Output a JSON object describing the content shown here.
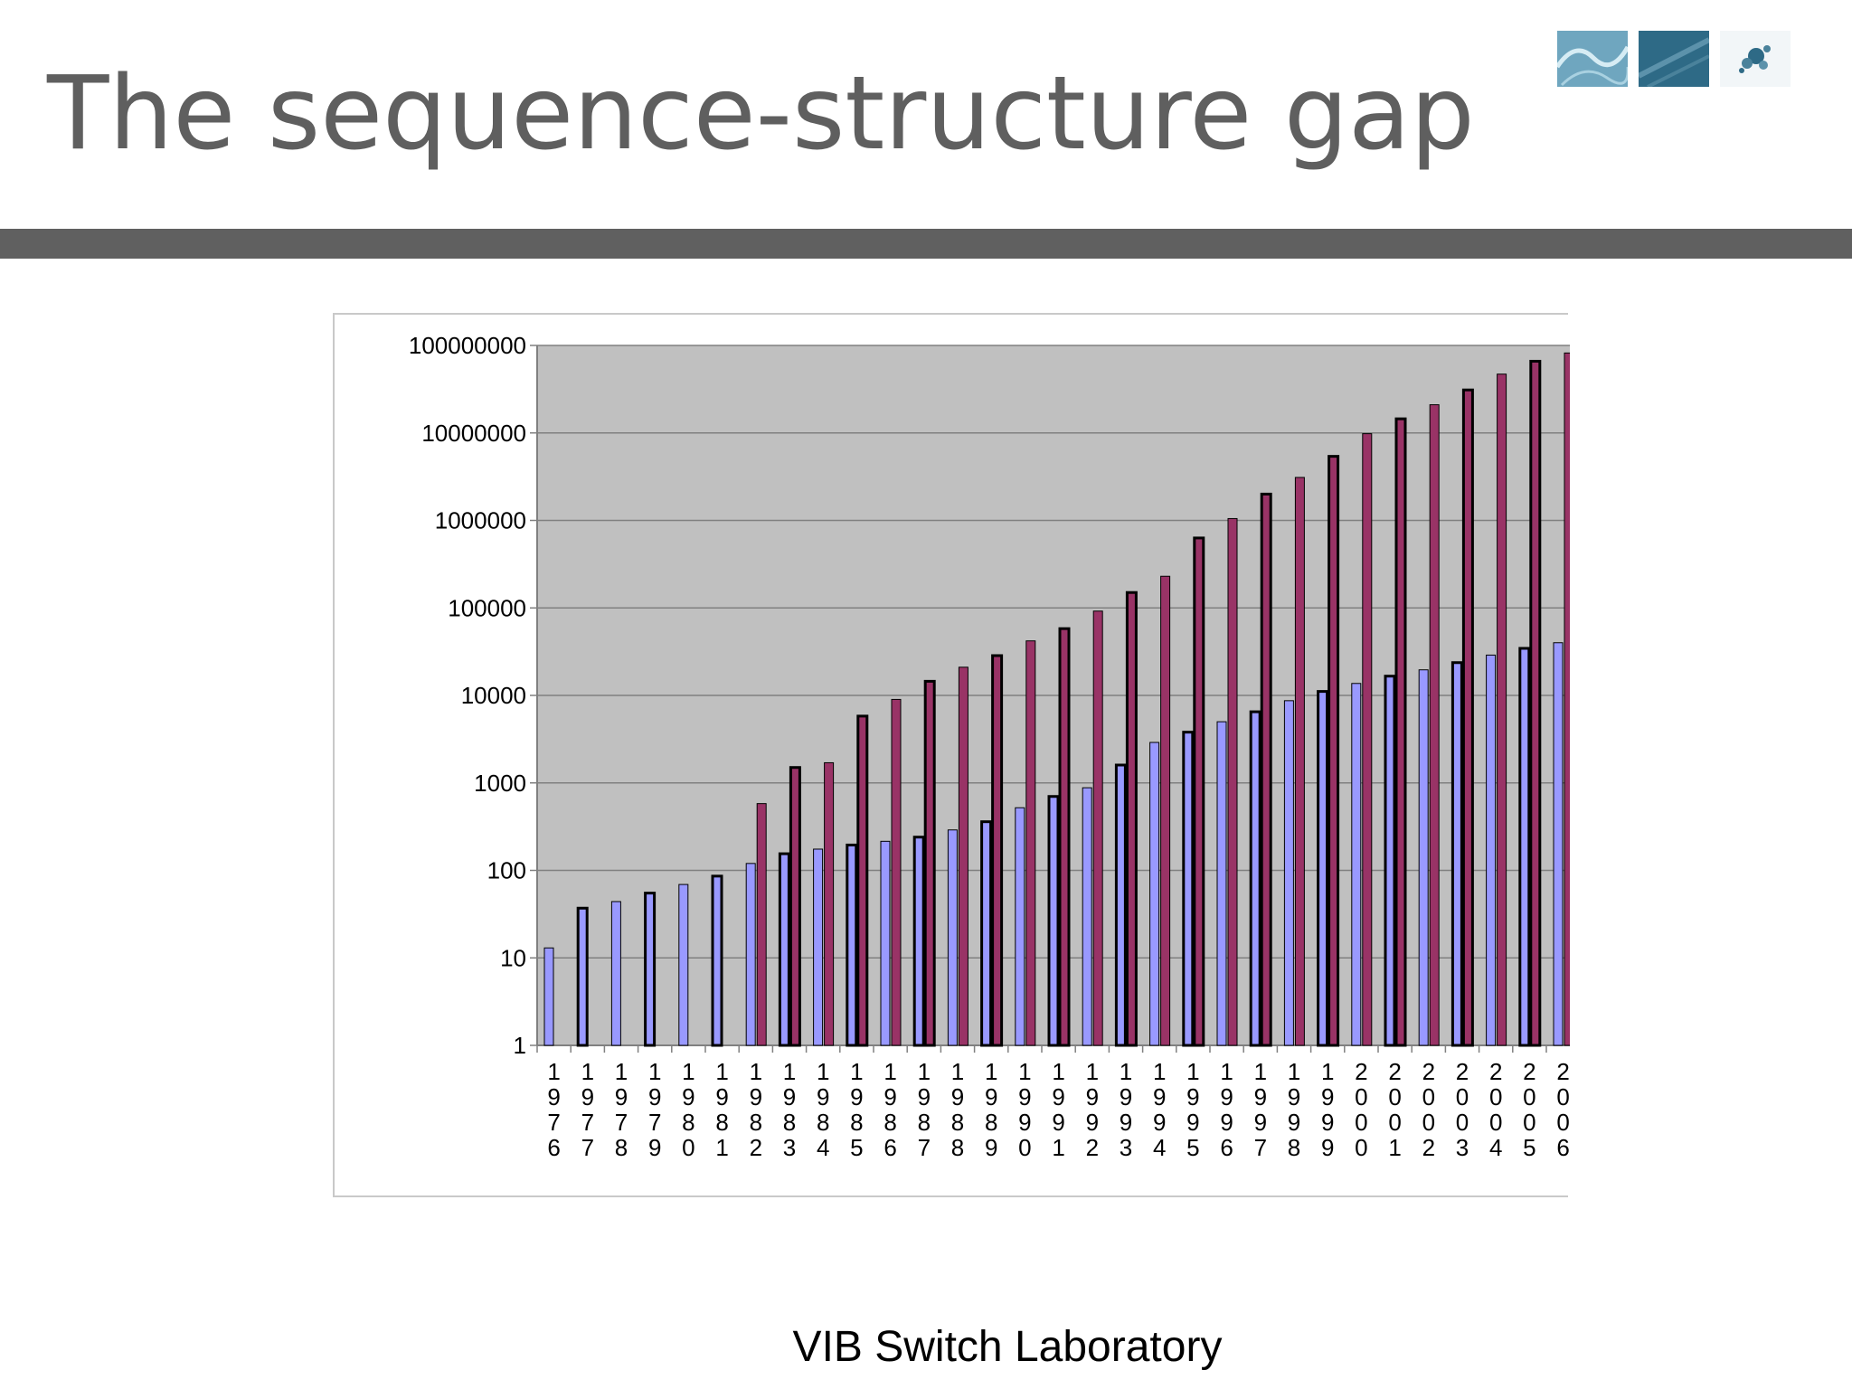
{
  "slide": {
    "title": "The sequence-structure gap",
    "footer": "VIB Switch Laboratory"
  },
  "colors": {
    "title_text": "#5f5f5f",
    "title_rule": "#606060",
    "plot_background": "#c0c0c0",
    "structures_series": "#9999ff",
    "sequences_series": "#993366"
  },
  "icons": [
    "thumbnail-image-1",
    "thumbnail-image-2",
    "thumbnail-image-3"
  ],
  "chart_data": {
    "type": "bar",
    "title": "",
    "xlabel": "",
    "ylabel": "",
    "yscale": "log",
    "ylim": [
      1,
      100000000
    ],
    "yticks": [
      1,
      10,
      100,
      1000,
      10000,
      100000,
      1000000,
      10000000,
      100000000
    ],
    "ytick_labels": [
      "1",
      "10",
      "100",
      "1000",
      "10000",
      "100000",
      "1000000",
      "10000000",
      "100000000"
    ],
    "grid": true,
    "legend": "none",
    "categories": [
      "1976",
      "1977",
      "1978",
      "1979",
      "1980",
      "1981",
      "1982",
      "1983",
      "1984",
      "1985",
      "1986",
      "1987",
      "1988",
      "1989",
      "1990",
      "1991",
      "1992",
      "1993",
      "1994",
      "1995",
      "1996",
      "1997",
      "1998",
      "1999",
      "2000",
      "2001",
      "2002",
      "2003",
      "2004",
      "2005",
      "2006"
    ],
    "series": [
      {
        "values": [
          13,
          37,
          44,
          55,
          69,
          86,
          120,
          155,
          175,
          195,
          215,
          240,
          290,
          360,
          520,
          700,
          880,
          1600,
          2900,
          3800,
          5000,
          6500,
          8700,
          11100,
          13700,
          16600,
          19600,
          23700,
          28900,
          34500,
          40000
        ]
      },
      {
        "values": [
          null,
          null,
          null,
          null,
          null,
          null,
          580,
          1500,
          1700,
          5800,
          9000,
          14500,
          21000,
          28500,
          42000,
          58000,
          92000,
          150000,
          230000,
          630000,
          1050000,
          2000000,
          3100000,
          5400000,
          9800000,
          14500000,
          21000000,
          31000000,
          47000000,
          66000000,
          82000000
        ]
      }
    ]
  }
}
